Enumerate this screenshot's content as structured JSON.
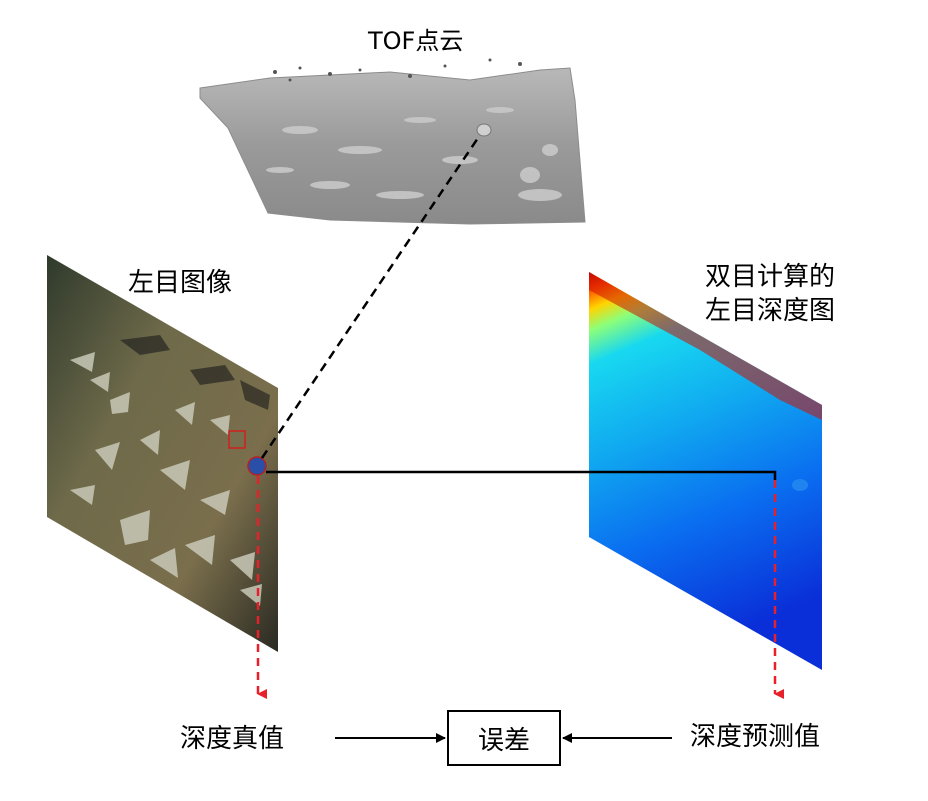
{
  "labels": {
    "tof_point_cloud": "TOF点云",
    "left_image": "左目图像",
    "stereo_depth_line1": "双目计算的",
    "stereo_depth_line2": "左目深度图",
    "depth_true": "深度真值",
    "error": "误差",
    "depth_pred": "深度预测值"
  },
  "colors": {
    "dashed_red": "#e8202a",
    "dashed_black": "#000000",
    "point_cloud_gray": "#9a9a9a",
    "depth_near": "#0a2fd8",
    "depth_mid": "#18c8ee",
    "depth_far": "#e01a00"
  },
  "icons": {
    "marker": "blue-dot-marker-icon",
    "roi": "red-square-roi-icon"
  }
}
